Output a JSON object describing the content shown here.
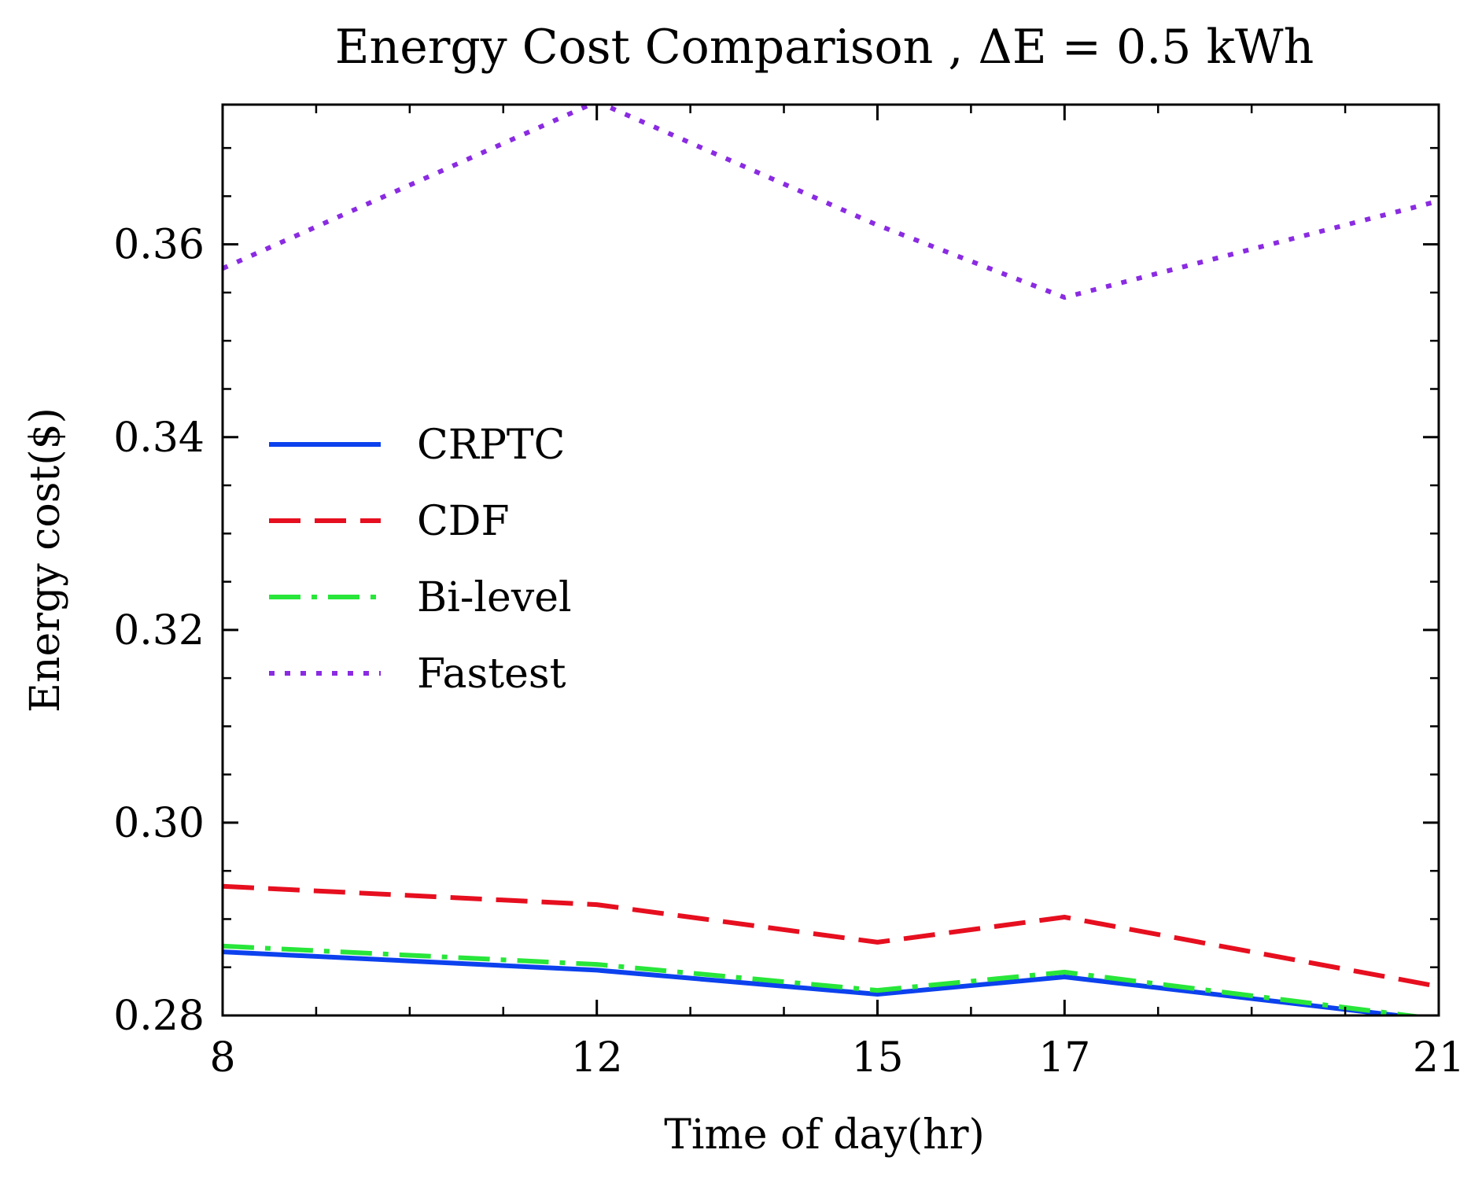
{
  "chart_data": {
    "type": "line",
    "title": "Energy Cost Comparison , ΔE = 0.5 kWh",
    "xlabel": "Time of day(hr)",
    "ylabel": "Energy cost($)",
    "x": [
      8,
      12,
      15,
      17,
      21
    ],
    "x_ticks": [
      "8",
      "12",
      "15",
      "17",
      "21"
    ],
    "xlim": [
      8,
      21
    ],
    "ylim": [
      0.28,
      0.3745
    ],
    "y_ticks": [
      0.28,
      0.3,
      0.32,
      0.34,
      0.36
    ],
    "y_tick_labels": [
      "0.28",
      "0.30",
      "0.32",
      "0.34",
      "0.36"
    ],
    "grid": false,
    "legend_position": "center-left",
    "series": [
      {
        "name": "CRPTC",
        "color": "#0c41ee",
        "style": "solid",
        "values": [
          0.2866,
          0.2847,
          0.2822,
          0.284,
          0.2795
        ]
      },
      {
        "name": "CDF",
        "color": "#e60f1f",
        "style": "dashed",
        "values": [
          0.2934,
          0.2915,
          0.2876,
          0.2902,
          0.283
        ]
      },
      {
        "name": "Bi-level",
        "color": "#28e63a",
        "style": "dashdot",
        "values": [
          0.2872,
          0.2853,
          0.2826,
          0.2845,
          0.2796
        ]
      },
      {
        "name": "Fastest",
        "color": "#8a2be2",
        "style": "dotted",
        "values": [
          0.3575,
          0.3748,
          0.362,
          0.3545,
          0.3645
        ]
      }
    ]
  }
}
